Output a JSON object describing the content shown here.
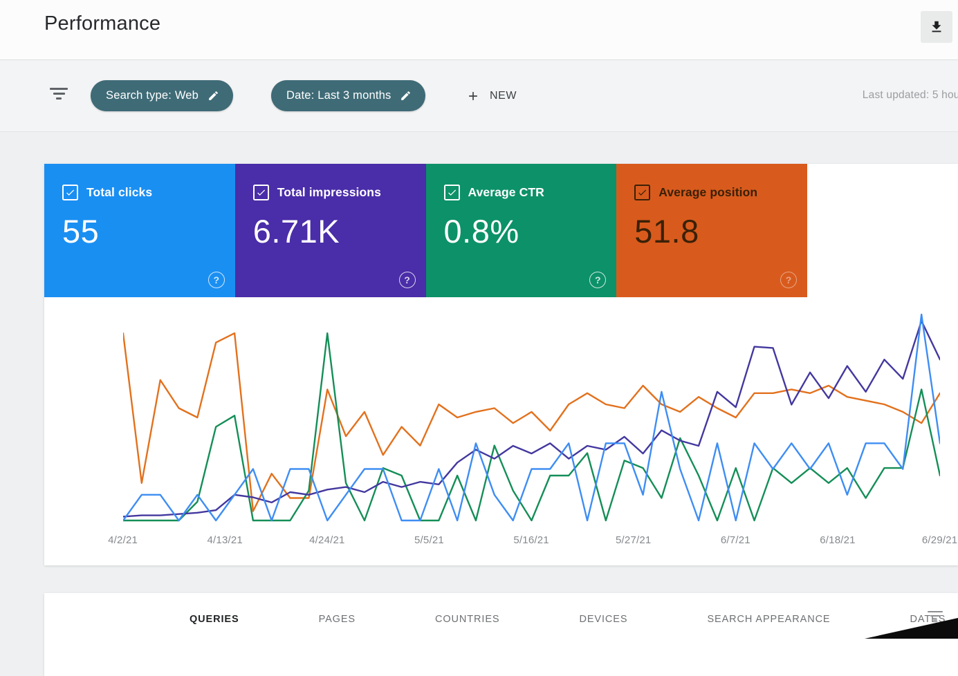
{
  "header": {
    "title": "Performance"
  },
  "filter_bar": {
    "chips": [
      {
        "label": "Search type: Web"
      },
      {
        "label": "Date: Last 3 months"
      }
    ],
    "new_button_label": "NEW",
    "last_updated": "Last updated: 5 hour"
  },
  "icons": {
    "help_glyph": "?"
  },
  "metric_cards": [
    {
      "label": "Total clicks",
      "value": "55",
      "color": "#1a8ff2",
      "text_color": "#ffffff",
      "checked": true
    },
    {
      "label": "Total impressions",
      "value": "6.71K",
      "color": "#4a2da8",
      "text_color": "#ffffff",
      "checked": true
    },
    {
      "label": "Average CTR",
      "value": "0.8%",
      "color": "#0d9168",
      "text_color": "#ffffff",
      "checked": true
    },
    {
      "label": "Average position",
      "value": "51.8",
      "color": "#d85b1d",
      "text_color": "#3b2008",
      "checked": true
    }
  ],
  "chart_data": {
    "type": "line",
    "title": "",
    "xlabel": "",
    "ylabel": "",
    "grid": false,
    "legend_position": "none (series colors match metric cards)",
    "x_range": [
      "4/2/21",
      "6/29/21"
    ],
    "sample_step_days": 2,
    "x_tick_labels": [
      "4/2/21",
      "4/13/21",
      "4/24/21",
      "5/5/21",
      "5/16/21",
      "5/27/21",
      "6/7/21",
      "6/18/21",
      "6/29/21"
    ],
    "series": [
      {
        "name": "Average position",
        "color": "#e2711d",
        "axis_max": 110,
        "values": [
          100,
          20,
          75,
          60,
          55,
          95,
          100,
          5,
          25,
          12,
          12,
          70,
          45,
          58,
          35,
          50,
          40,
          62,
          55,
          58,
          60,
          52,
          58,
          48,
          62,
          68,
          62,
          60,
          72,
          62,
          58,
          66,
          60,
          55,
          68,
          68,
          70,
          68,
          72,
          66,
          64,
          62,
          58,
          52,
          68
        ]
      },
      {
        "name": "Average CTR",
        "color": "#148e57",
        "axis_max": 55,
        "unit": "%",
        "values": [
          0,
          0,
          0,
          0,
          5,
          25,
          28,
          0,
          0,
          0,
          8,
          50,
          10,
          0,
          14,
          12,
          0,
          0,
          12,
          0,
          20,
          8,
          0,
          12,
          12,
          18,
          0,
          16,
          14,
          6,
          22,
          12,
          0,
          14,
          0,
          14,
          10,
          14,
          10,
          14,
          6,
          14,
          14,
          35,
          12
        ]
      },
      {
        "name": "Total impressions",
        "color": "#43389f",
        "axis_max": 160,
        "values": [
          3,
          4,
          4,
          5,
          6,
          8,
          20,
          18,
          14,
          22,
          20,
          24,
          26,
          22,
          30,
          26,
          30,
          28,
          45,
          55,
          48,
          58,
          52,
          60,
          48,
          58,
          55,
          65,
          52,
          70,
          62,
          58,
          100,
          88,
          135,
          134,
          90,
          115,
          95,
          120,
          100,
          125,
          110,
          155,
          125
        ]
      },
      {
        "name": "Total clicks",
        "color": "#3e8df3",
        "axis_max": 8,
        "values": [
          0,
          1,
          1,
          0,
          1,
          0,
          1,
          2,
          0,
          2,
          2,
          0,
          1,
          2,
          2,
          0,
          0,
          2,
          0,
          3,
          1,
          0,
          2,
          2,
          3,
          0,
          3,
          3,
          1,
          5,
          2,
          0,
          3,
          0,
          3,
          2,
          3,
          2,
          3,
          1,
          3,
          3,
          2,
          8,
          3
        ]
      }
    ]
  },
  "tabs": {
    "items": [
      {
        "label": "QUERIES",
        "active": true
      },
      {
        "label": "PAGES",
        "active": false
      },
      {
        "label": "COUNTRIES",
        "active": false
      },
      {
        "label": "DEVICES",
        "active": false
      },
      {
        "label": "SEARCH APPEARANCE",
        "active": false
      },
      {
        "label": "DATES",
        "active": false
      }
    ]
  }
}
